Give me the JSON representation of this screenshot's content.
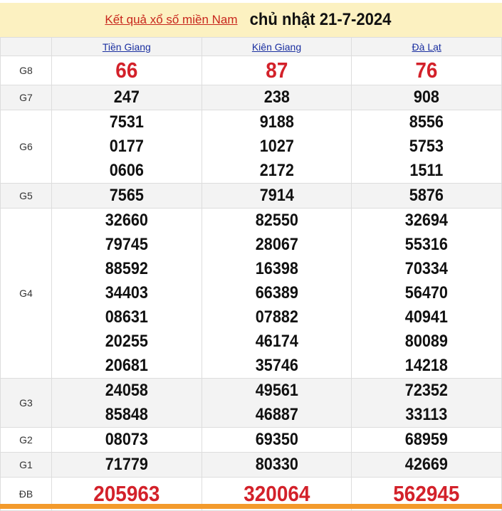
{
  "header": {
    "link": "Kết quả xổ số miền Nam",
    "date": "chủ nhật 21-7-2024"
  },
  "provinces": [
    "Tiền Giang",
    "Kiên Giang",
    "Đà Lạt"
  ],
  "prizes": [
    {
      "label": "G8",
      "values": [
        [
          "66"
        ],
        [
          "87"
        ],
        [
          "76"
        ]
      ]
    },
    {
      "label": "G7",
      "values": [
        [
          "247"
        ],
        [
          "238"
        ],
        [
          "908"
        ]
      ]
    },
    {
      "label": "G6",
      "values": [
        [
          "7531",
          "0177",
          "0606"
        ],
        [
          "9188",
          "1027",
          "2172"
        ],
        [
          "8556",
          "5753",
          "1511"
        ]
      ]
    },
    {
      "label": "G5",
      "values": [
        [
          "7565"
        ],
        [
          "7914"
        ],
        [
          "5876"
        ]
      ]
    },
    {
      "label": "G4",
      "values": [
        [
          "32660",
          "79745",
          "88592",
          "34403",
          "08631",
          "20255",
          "20681"
        ],
        [
          "82550",
          "28067",
          "16398",
          "66389",
          "07882",
          "46174",
          "35746"
        ],
        [
          "32694",
          "55316",
          "70334",
          "56470",
          "40941",
          "80089",
          "14218"
        ]
      ]
    },
    {
      "label": "G3",
      "values": [
        [
          "24058",
          "85848"
        ],
        [
          "49561",
          "46887"
        ],
        [
          "72352",
          "33113"
        ]
      ]
    },
    {
      "label": "G2",
      "values": [
        [
          "08073"
        ],
        [
          "69350"
        ],
        [
          "68959"
        ]
      ]
    },
    {
      "label": "G1",
      "values": [
        [
          "71779"
        ],
        [
          "80330"
        ],
        [
          "42669"
        ]
      ]
    },
    {
      "label": "ĐB",
      "values": [
        [
          "205963"
        ],
        [
          "320064"
        ],
        [
          "562945"
        ]
      ]
    }
  ],
  "colors": {
    "highlight": "#d3212a",
    "title_bg": "#fcf1c1",
    "link": "#1a2fa0",
    "bottom_bar": "#f39a2c"
  }
}
